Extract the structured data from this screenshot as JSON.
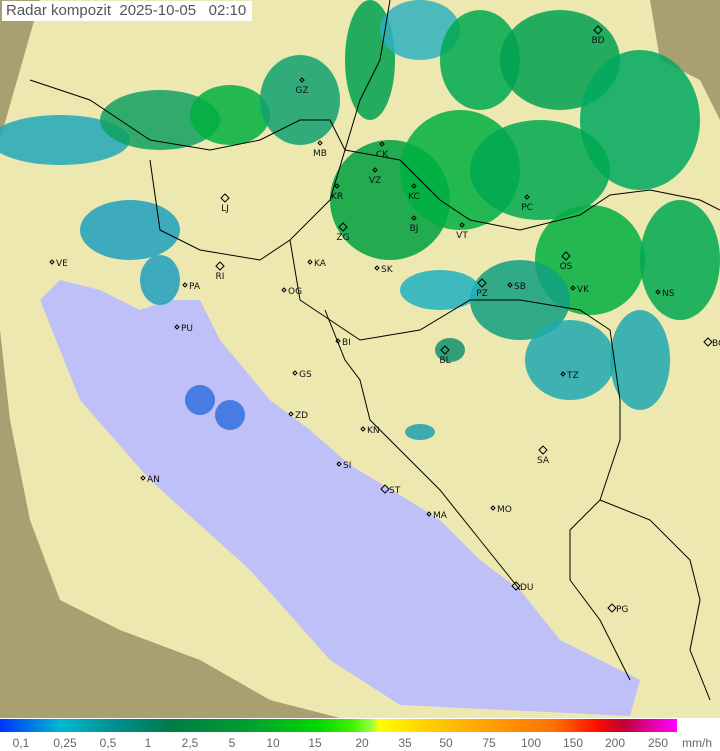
{
  "header": {
    "title": "Radar kompozit",
    "date": "2025-10-05",
    "time": "02:10"
  },
  "legend": {
    "unit": "mm/h",
    "values": [
      "0,1",
      "0,25",
      "0,5",
      "1",
      "2,5",
      "5",
      "10",
      "15",
      "20",
      "35",
      "50",
      "75",
      "100",
      "150",
      "200",
      "250"
    ],
    "colors": [
      "#0033ff",
      "#00b8d0",
      "#009090",
      "#007a48",
      "#00a030",
      "#00d800",
      "#40f000",
      "#a0ff40",
      "#ffff00",
      "#ffd000",
      "#ffa000",
      "#ff7000",
      "#ff1000",
      "#c00030",
      "#e000a0",
      "#ff00ff"
    ]
  },
  "map": {
    "sea_color": "#c0c0f8",
    "land_color": "#ece8b0",
    "outside_coverage_color": "#a8a070",
    "cities": [
      "GZ",
      "MB",
      "CK",
      "VZ",
      "KR",
      "KC",
      "ZG",
      "BJ",
      "VT",
      "PC",
      "BD",
      "LJ",
      "VE",
      "RI",
      "PA",
      "KA",
      "SK",
      "OG",
      "PU",
      "PZ",
      "SB",
      "OS",
      "VK",
      "NS",
      "BG",
      "BI",
      "BL",
      "TZ",
      "GS",
      "ZD",
      "KN",
      "SI",
      "SA",
      "AN",
      "ST",
      "MA",
      "MO",
      "DU",
      "PG"
    ]
  }
}
